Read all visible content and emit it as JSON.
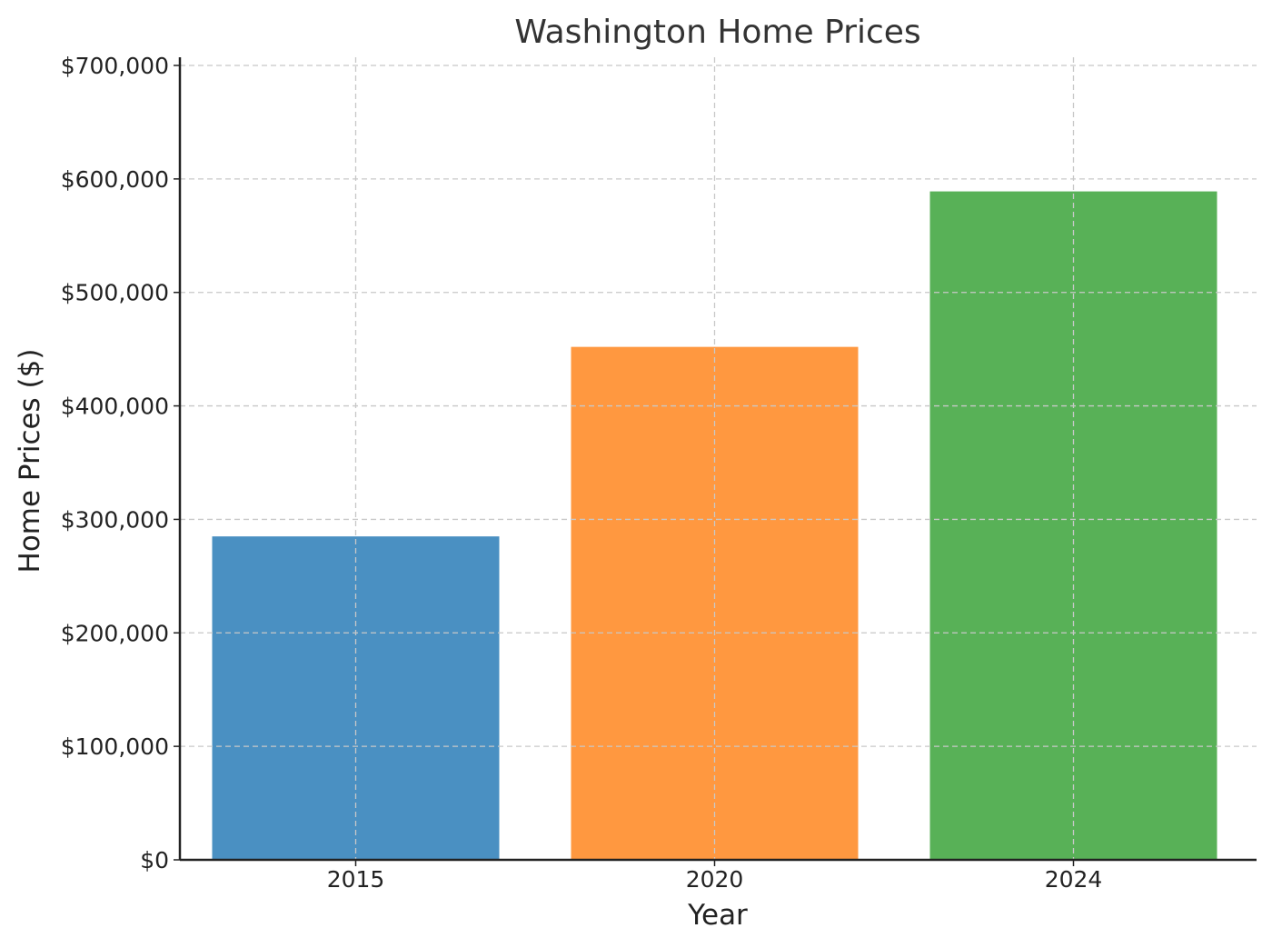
{
  "chart_data": {
    "type": "bar",
    "title": "Washington Home Prices",
    "xlabel": "Year",
    "ylabel": "Home Prices ($)",
    "categories": [
      "2015",
      "2020",
      "2024"
    ],
    "values": [
      285000,
      452000,
      589000
    ],
    "colors": [
      "#4a90c2",
      "#ff9840",
      "#58b157"
    ],
    "ylim": [
      0,
      700000
    ],
    "yticks": [
      0,
      100000,
      200000,
      300000,
      400000,
      500000,
      600000,
      700000
    ],
    "ytick_labels": [
      "$0",
      "$100,000",
      "$200,000",
      "$300,000",
      "$400,000",
      "$500,000",
      "$600,000",
      "$700,000"
    ],
    "grid": true,
    "legend": false
  }
}
